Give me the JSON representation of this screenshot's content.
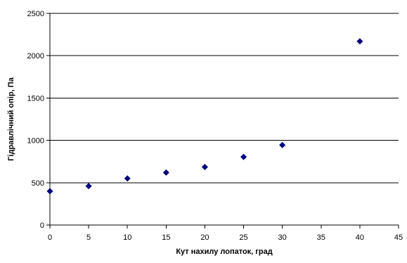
{
  "chart_data": {
    "type": "scatter",
    "title": "",
    "xlabel": "Кут нахилу лопаток, град",
    "ylabel": "Гідравлічний опір, Па",
    "xlim": [
      0,
      45
    ],
    "ylim": [
      0,
      2500
    ],
    "x_ticks": [
      0,
      5,
      10,
      15,
      20,
      25,
      30,
      35,
      40,
      45
    ],
    "y_ticks": [
      0,
      500,
      1000,
      1500,
      2000,
      2500
    ],
    "x_tick_labels": [
      "0",
      "5",
      "10",
      "15",
      "20",
      "25",
      "30",
      "35",
      "40",
      "45"
    ],
    "y_tick_labels": [
      "0",
      "500",
      "1000",
      "1500",
      "2000",
      "2500"
    ],
    "grid": {
      "x": false,
      "y": true
    },
    "legend": "none",
    "marker": "diamond",
    "series": [
      {
        "color": "#000080",
        "points": [
          {
            "x": 0,
            "y": 400
          },
          {
            "x": 5,
            "y": 460
          },
          {
            "x": 10,
            "y": 550
          },
          {
            "x": 15,
            "y": 620
          },
          {
            "x": 20,
            "y": 685
          },
          {
            "x": 25,
            "y": 805
          },
          {
            "x": 30,
            "y": 945
          },
          {
            "x": 40,
            "y": 2170
          }
        ]
      }
    ]
  }
}
